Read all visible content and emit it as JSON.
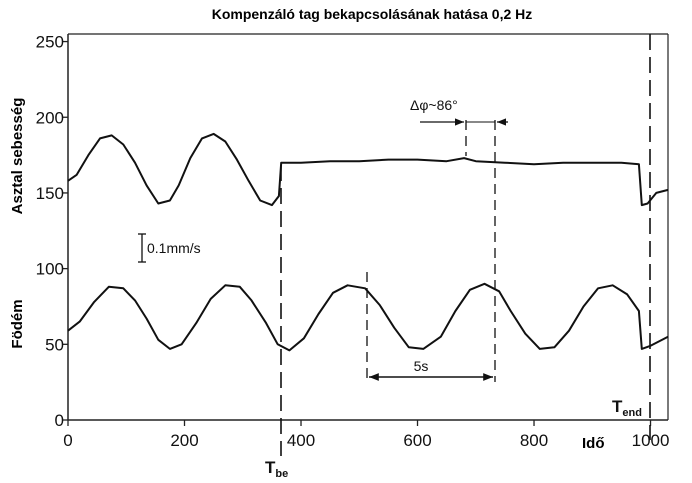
{
  "chart_data": {
    "type": "line",
    "title": "Kompenzáló tag bekapcsolásának hatása 0,2 Hz",
    "xlabel": "Idő",
    "ylabel_top": "Asztal sebesség",
    "ylabel_bottom": "Födém",
    "xlim": [
      0,
      1030
    ],
    "ylim": [
      0,
      255
    ],
    "x_ticks": [
      0,
      200,
      400,
      600,
      800,
      1000
    ],
    "y_ticks": [
      0,
      50,
      100,
      150,
      200,
      250
    ],
    "grid": false,
    "series": [
      {
        "x": [
          0,
          15,
          35,
          55,
          75,
          95,
          115,
          135,
          155,
          175,
          190,
          210,
          230,
          250,
          270,
          290,
          310,
          330,
          350,
          362,
          366,
          370,
          400,
          450,
          500,
          550,
          600,
          650,
          680,
          700,
          750,
          800,
          850,
          900,
          950,
          980,
          985,
          995,
          1010,
          1030
        ],
        "values": [
          158,
          162,
          175,
          186,
          188,
          182,
          170,
          155,
          143,
          145,
          155,
          173,
          186,
          189,
          184,
          172,
          158,
          145,
          142,
          148,
          170,
          170,
          170,
          171,
          171,
          172,
          172,
          171,
          173,
          171,
          170,
          169,
          170,
          170,
          170,
          169,
          142,
          143,
          150,
          152
        ]
      },
      {
        "x": [
          0,
          20,
          45,
          70,
          95,
          115,
          135,
          155,
          175,
          195,
          220,
          245,
          270,
          295,
          315,
          340,
          360,
          380,
          405,
          430,
          455,
          480,
          510,
          535,
          560,
          585,
          610,
          640,
          665,
          690,
          715,
          740,
          760,
          785,
          810,
          835,
          860,
          885,
          910,
          935,
          960,
          980,
          985,
          1000,
          1030
        ],
        "values": [
          59,
          65,
          78,
          88,
          87,
          79,
          67,
          53,
          47,
          50,
          64,
          80,
          89,
          88,
          79,
          64,
          50,
          46,
          54,
          70,
          84,
          89,
          87,
          76,
          61,
          48,
          47,
          55,
          72,
          86,
          90,
          85,
          72,
          57,
          47,
          48,
          59,
          75,
          87,
          89,
          83,
          72,
          47,
          49,
          55
        ]
      }
    ],
    "annotations": {
      "scale_bar": "0.1mm/s",
      "phase": "Δφ~86°",
      "period": "5s",
      "t_start_main": "T",
      "t_start_sub": "be",
      "t_end_main": "T",
      "t_end_sub": "end"
    }
  }
}
